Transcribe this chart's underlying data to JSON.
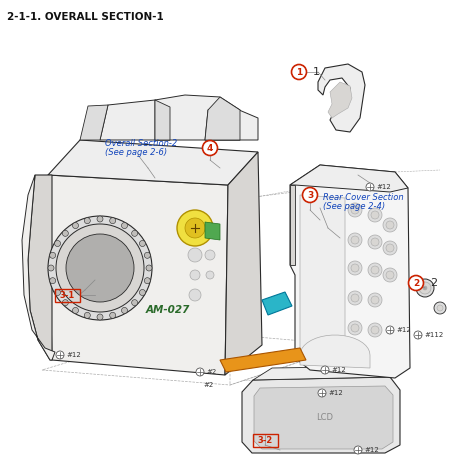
{
  "title": "2-1-1. OVERALL SECTION-1",
  "title_fontsize": 7.5,
  "bg_color": "#ffffff",
  "label_overall_section2_line1": "Overall Section-2",
  "label_overall_section2_line2": "(See page 2-6)",
  "label_rear_cover_line1": "Rear Cover Section",
  "label_rear_cover_line2": "(See page 2-4)",
  "label_am027": "AM-027",
  "green_fill": "#9ecf9e",
  "yellow_fill": "#f0e040",
  "cyan_fill": "#2ab5c8",
  "orange_fill": "#e8941a",
  "red_color": "#cc2200",
  "blue_color": "#1144bb",
  "dark": "#2a2a2a",
  "gray1": "#aaaaaa",
  "gray2": "#dddddd",
  "gray3": "#eeeeee",
  "gray4": "#f5f5f5",
  "cam_body_fill": "#f0efed",
  "cam_shadow": "#d8d6d3",
  "cam_dark": "#c0bebb"
}
